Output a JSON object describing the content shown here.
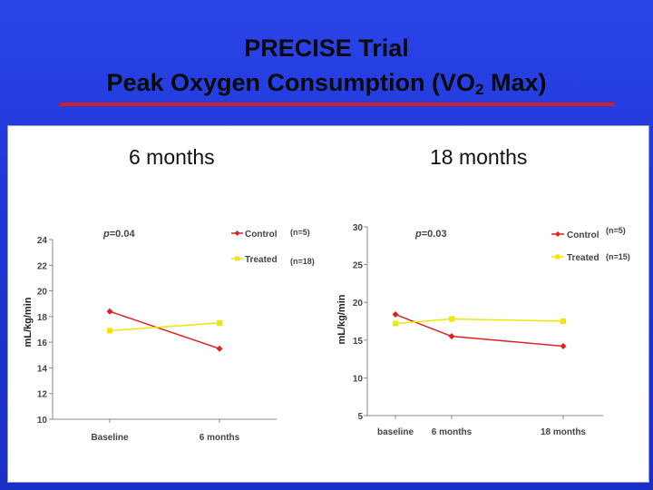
{
  "slide": {
    "title_line1": "PRECISE Trial",
    "title_line2_prefix": "Peak Oxygen Consumption (VO",
    "title_line2_sub": "2",
    "title_line2_suffix": " Max)",
    "subtitle_left": "6 months",
    "subtitle_right": "18 months"
  },
  "colors": {
    "control": "#e02020",
    "treated": "#f2e600",
    "axis": "#888888"
  },
  "chart_data": [
    {
      "type": "line",
      "title": "6 months",
      "ylabel": "mL/kg/min",
      "xlabel": "",
      "categories": [
        "Baseline",
        "6 months"
      ],
      "ylim": [
        10,
        24
      ],
      "yticks": [
        10,
        12,
        14,
        16,
        18,
        20,
        22,
        24
      ],
      "p_value": "=0.04",
      "series": [
        {
          "name": "Control",
          "n_label": "(n=5)",
          "values": [
            18.4,
            15.5
          ]
        },
        {
          "name": "Treated",
          "n_label": "(n=18)",
          "values": [
            16.9,
            17.5
          ]
        }
      ]
    },
    {
      "type": "line",
      "title": "18 months",
      "ylabel": "mL/kg/min",
      "xlabel": "",
      "categories": [
        "baseline",
        "6 months",
        "18 months"
      ],
      "ylim": [
        5,
        30
      ],
      "yticks": [
        5,
        10,
        15,
        20,
        25,
        30
      ],
      "p_value": "=0.03",
      "series": [
        {
          "name": "Control",
          "n_label": "(n=5)",
          "values": [
            18.4,
            15.5,
            14.2
          ]
        },
        {
          "name": "Treated",
          "n_label": "(n=15)",
          "values": [
            17.2,
            17.8,
            17.5
          ]
        }
      ]
    }
  ]
}
